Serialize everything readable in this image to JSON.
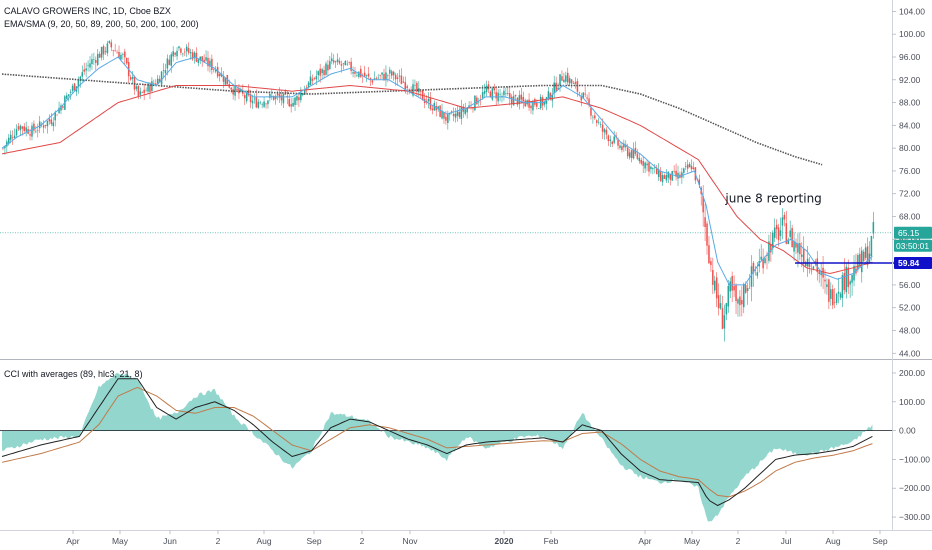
{
  "legend": {
    "title": "CALAVO GROWERS INC, 1D, Cboe BZX",
    "ema_sma": "EMA/SMA (9, 20, 50, 89, 200, 50, 200, 100, 200)",
    "cci": "CCI with averages (89, hlc3, 21, 8)"
  },
  "annotation": "june 8 reporting",
  "badges": {
    "last_price": "65.15",
    "countdown": "03:50:01",
    "level": "59.84"
  },
  "colors": {
    "up": "#26a69a",
    "down": "#ef5350",
    "ema_fast": "#5aa9e6",
    "ema_mid": "#e04848",
    "sma_slow": "#555555",
    "level_line": "#1010c8",
    "cci_fill": "#7fcfc4",
    "cci_line": "#222222",
    "cci_avg": "#c07a4a"
  },
  "chart_data": [
    {
      "type": "candlestick",
      "title": "CALAVO GROWERS INC, 1D, Cboe BZX",
      "x_ticks": [
        "Apr",
        "May",
        "Jun",
        "2",
        "Aug",
        "Sep",
        "2",
        "Nov",
        "2020",
        "Feb",
        "Apr",
        "May",
        "2",
        "Jul",
        "Aug",
        "Sep"
      ],
      "y_ticks": [
        "104.00",
        "100.00",
        "96.00",
        "92.00",
        "88.00",
        "84.00",
        "80.00",
        "76.00",
        "72.00",
        "68.00",
        "64.00",
        "60.00",
        "56.00",
        "52.00",
        "48.00",
        "44.00"
      ],
      "ylim": [
        43,
        106
      ],
      "close_anchors": [
        [
          0,
          80
        ],
        [
          8,
          84
        ],
        [
          15,
          83
        ],
        [
          25,
          85
        ],
        [
          35,
          90
        ],
        [
          45,
          95
        ],
        [
          55,
          98
        ],
        [
          62,
          96
        ],
        [
          70,
          89
        ],
        [
          80,
          92
        ],
        [
          90,
          98
        ],
        [
          100,
          96
        ],
        [
          110,
          94
        ],
        [
          120,
          90
        ],
        [
          130,
          88
        ],
        [
          140,
          89
        ],
        [
          150,
          88
        ],
        [
          160,
          92
        ],
        [
          170,
          95
        ],
        [
          180,
          94
        ],
        [
          190,
          92
        ],
        [
          200,
          93
        ],
        [
          210,
          91
        ],
        [
          220,
          88
        ],
        [
          230,
          85
        ],
        [
          240,
          87
        ],
        [
          250,
          90
        ],
        [
          260,
          89
        ],
        [
          270,
          88
        ],
        [
          280,
          88
        ],
        [
          290,
          93
        ],
        [
          300,
          89
        ],
        [
          310,
          83
        ],
        [
          320,
          80
        ],
        [
          330,
          78
        ],
        [
          340,
          75
        ],
        [
          350,
          75
        ],
        [
          356,
          77
        ],
        [
          360,
          73
        ],
        [
          364,
          64
        ],
        [
          368,
          55
        ],
        [
          372,
          50
        ],
        [
          376,
          55
        ],
        [
          380,
          52
        ],
        [
          384,
          56
        ],
        [
          390,
          59
        ],
        [
          396,
          63
        ],
        [
          403,
          66
        ],
        [
          410,
          63
        ],
        [
          415,
          61
        ],
        [
          420,
          60
        ],
        [
          424,
          56
        ],
        [
          428,
          54
        ],
        [
          432,
          56
        ],
        [
          438,
          58
        ],
        [
          444,
          60
        ],
        [
          448,
          62
        ],
        [
          450,
          65
        ]
      ],
      "ema_fast": [
        [
          0,
          80
        ],
        [
          8,
          82
        ],
        [
          20,
          84
        ],
        [
          30,
          87
        ],
        [
          40,
          91
        ],
        [
          50,
          94
        ],
        [
          60,
          96
        ],
        [
          70,
          92
        ],
        [
          80,
          91
        ],
        [
          90,
          95
        ],
        [
          100,
          96
        ],
        [
          110,
          94
        ],
        [
          120,
          91
        ],
        [
          130,
          89
        ],
        [
          140,
          89
        ],
        [
          150,
          89
        ],
        [
          160,
          91
        ],
        [
          170,
          93
        ],
        [
          180,
          94
        ],
        [
          190,
          92
        ],
        [
          200,
          92
        ],
        [
          210,
          90
        ],
        [
          220,
          88
        ],
        [
          230,
          86
        ],
        [
          240,
          87
        ],
        [
          250,
          89
        ],
        [
          260,
          89
        ],
        [
          270,
          88
        ],
        [
          280,
          88
        ],
        [
          290,
          91
        ],
        [
          300,
          89
        ],
        [
          310,
          85
        ],
        [
          320,
          81
        ],
        [
          330,
          79
        ],
        [
          340,
          76
        ],
        [
          350,
          75
        ],
        [
          358,
          76
        ],
        [
          364,
          70
        ],
        [
          370,
          60
        ],
        [
          376,
          56
        ],
        [
          384,
          56
        ],
        [
          392,
          60
        ],
        [
          400,
          63
        ],
        [
          408,
          64
        ],
        [
          416,
          62
        ],
        [
          424,
          58
        ],
        [
          432,
          57
        ],
        [
          440,
          58
        ],
        [
          450,
          61
        ]
      ],
      "ema_mid": [
        [
          0,
          79
        ],
        [
          30,
          81
        ],
        [
          60,
          88
        ],
        [
          90,
          91
        ],
        [
          120,
          91
        ],
        [
          150,
          90
        ],
        [
          180,
          91
        ],
        [
          210,
          90
        ],
        [
          240,
          87
        ],
        [
          270,
          88
        ],
        [
          290,
          89
        ],
        [
          310,
          87
        ],
        [
          330,
          84
        ],
        [
          345,
          81
        ],
        [
          360,
          78
        ],
        [
          368,
          74
        ],
        [
          380,
          68
        ],
        [
          392,
          64
        ],
        [
          404,
          62
        ],
        [
          416,
          59
        ],
        [
          428,
          58
        ],
        [
          440,
          59
        ],
        [
          450,
          60
        ]
      ],
      "sma_slow": [
        [
          0,
          93
        ],
        [
          40,
          92
        ],
        [
          80,
          91
        ],
        [
          120,
          90
        ],
        [
          160,
          89.5
        ],
        [
          200,
          90
        ],
        [
          240,
          90.5
        ],
        [
          280,
          91
        ],
        [
          300,
          91
        ],
        [
          310,
          91
        ],
        [
          330,
          89.5
        ],
        [
          350,
          87
        ],
        [
          370,
          84
        ],
        [
          390,
          81
        ],
        [
          410,
          78.5
        ],
        [
          425,
          77
        ]
      ],
      "horizontal_line": 59.84,
      "last_price": 65.15,
      "annotation": "june 8 reporting",
      "annotation_position": {
        "bar": 374,
        "price": 70.5
      }
    },
    {
      "type": "area",
      "title": "CCI with averages (89, hlc3, 21, 8)",
      "y_ticks": [
        "200.00",
        "100.00",
        "0.00",
        "−100.00",
        "−200.00",
        "−300.00"
      ],
      "ylim": [
        -345,
        245
      ],
      "cci": [
        [
          0,
          -70
        ],
        [
          20,
          -30
        ],
        [
          40,
          -20
        ],
        [
          50,
          150
        ],
        [
          60,
          200
        ],
        [
          70,
          180
        ],
        [
          80,
          40
        ],
        [
          90,
          60
        ],
        [
          100,
          120
        ],
        [
          110,
          140
        ],
        [
          120,
          50
        ],
        [
          130,
          -10
        ],
        [
          140,
          -70
        ],
        [
          150,
          -130
        ],
        [
          160,
          -70
        ],
        [
          170,
          60
        ],
        [
          180,
          50
        ],
        [
          190,
          30
        ],
        [
          200,
          -20
        ],
        [
          210,
          -40
        ],
        [
          220,
          -60
        ],
        [
          230,
          -100
        ],
        [
          240,
          -20
        ],
        [
          250,
          -60
        ],
        [
          270,
          -20
        ],
        [
          280,
          -20
        ],
        [
          290,
          -60
        ],
        [
          300,
          60
        ],
        [
          310,
          -30
        ],
        [
          320,
          -120
        ],
        [
          330,
          -160
        ],
        [
          340,
          -180
        ],
        [
          350,
          -170
        ],
        [
          360,
          -200
        ],
        [
          365,
          -320
        ],
        [
          370,
          -290
        ],
        [
          376,
          -230
        ],
        [
          384,
          -160
        ],
        [
          392,
          -110
        ],
        [
          400,
          -60
        ],
        [
          410,
          -80
        ],
        [
          420,
          -80
        ],
        [
          430,
          -60
        ],
        [
          440,
          -40
        ],
        [
          450,
          20
        ]
      ],
      "cci_avg_fast": [
        [
          0,
          -90
        ],
        [
          20,
          -50
        ],
        [
          40,
          -20
        ],
        [
          50,
          80
        ],
        [
          60,
          180
        ],
        [
          70,
          180
        ],
        [
          80,
          80
        ],
        [
          90,
          40
        ],
        [
          100,
          80
        ],
        [
          110,
          100
        ],
        [
          120,
          70
        ],
        [
          130,
          20
        ],
        [
          140,
          -40
        ],
        [
          150,
          -90
        ],
        [
          160,
          -70
        ],
        [
          170,
          10
        ],
        [
          180,
          40
        ],
        [
          190,
          30
        ],
        [
          200,
          0
        ],
        [
          210,
          -30
        ],
        [
          220,
          -50
        ],
        [
          230,
          -80
        ],
        [
          240,
          -50
        ],
        [
          250,
          -40
        ],
        [
          270,
          -30
        ],
        [
          280,
          -25
        ],
        [
          290,
          -40
        ],
        [
          300,
          20
        ],
        [
          310,
          0
        ],
        [
          320,
          -80
        ],
        [
          330,
          -140
        ],
        [
          340,
          -170
        ],
        [
          350,
          -175
        ],
        [
          360,
          -180
        ],
        [
          365,
          -240
        ],
        [
          370,
          -260
        ],
        [
          376,
          -240
        ],
        [
          384,
          -200
        ],
        [
          392,
          -150
        ],
        [
          400,
          -100
        ],
        [
          410,
          -85
        ],
        [
          420,
          -80
        ],
        [
          430,
          -70
        ],
        [
          440,
          -55
        ],
        [
          450,
          -20
        ]
      ],
      "cci_avg_slow": [
        [
          0,
          -110
        ],
        [
          20,
          -80
        ],
        [
          40,
          -40
        ],
        [
          50,
          20
        ],
        [
          60,
          120
        ],
        [
          70,
          150
        ],
        [
          80,
          120
        ],
        [
          90,
          70
        ],
        [
          100,
          60
        ],
        [
          110,
          80
        ],
        [
          120,
          80
        ],
        [
          130,
          50
        ],
        [
          140,
          0
        ],
        [
          150,
          -50
        ],
        [
          160,
          -70
        ],
        [
          170,
          -30
        ],
        [
          180,
          10
        ],
        [
          190,
          20
        ],
        [
          200,
          10
        ],
        [
          210,
          -10
        ],
        [
          220,
          -30
        ],
        [
          230,
          -60
        ],
        [
          240,
          -55
        ],
        [
          250,
          -50
        ],
        [
          270,
          -40
        ],
        [
          280,
          -35
        ],
        [
          290,
          -38
        ],
        [
          300,
          -10
        ],
        [
          310,
          -5
        ],
        [
          320,
          -45
        ],
        [
          330,
          -100
        ],
        [
          340,
          -140
        ],
        [
          350,
          -160
        ],
        [
          360,
          -170
        ],
        [
          365,
          -200
        ],
        [
          370,
          -225
        ],
        [
          376,
          -230
        ],
        [
          384,
          -210
        ],
        [
          392,
          -180
        ],
        [
          400,
          -140
        ],
        [
          410,
          -110
        ],
        [
          420,
          -95
        ],
        [
          430,
          -85
        ],
        [
          440,
          -70
        ],
        [
          450,
          -45
        ]
      ]
    }
  ]
}
